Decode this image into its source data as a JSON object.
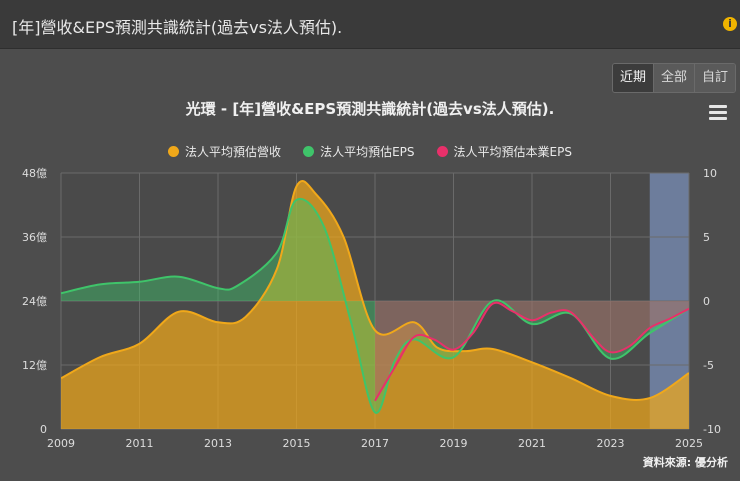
{
  "header": {
    "title": "[年]營收&EPS預測共識統計(過去vs法人預估)."
  },
  "tabs": [
    {
      "label": "近期",
      "active": true
    },
    {
      "label": "全部",
      "active": false
    },
    {
      "label": "自訂",
      "active": false
    }
  ],
  "source": "資料來源: 優分析",
  "colors": {
    "revenue": "#f0a81a",
    "eps": "#3fc46a",
    "epsCore": "#e8306a",
    "future": "#7a8fb8"
  },
  "chart_data": {
    "type": "area",
    "title": "光環 - [年]營收&EPS預測共識統計(過去vs法人預估).",
    "legend": [
      "法人平均預估營收",
      "法人平均預估EPS",
      "法人平均預估本業EPS"
    ],
    "x_ticks": [
      "2009",
      "2011",
      "2013",
      "2015",
      "2017",
      "2019",
      "2021",
      "2023",
      "2025"
    ],
    "xlim": [
      2009,
      2025
    ],
    "y_left": {
      "ticks": [
        "0",
        "12億",
        "24億",
        "36億",
        "48億"
      ],
      "ylim": [
        0,
        48
      ],
      "unit": "億"
    },
    "y_right": {
      "ticks": [
        "-10",
        "-5",
        "0",
        "5",
        "10"
      ],
      "ylim": [
        -10,
        10
      ]
    },
    "forecast_region": [
      2024,
      2025
    ],
    "series": [
      {
        "name": "法人平均預估營收",
        "axis": "left",
        "x": [
          2009,
          2010,
          2011,
          2012,
          2013,
          2013.7,
          2014.5,
          2015,
          2015.5,
          2016.2,
          2017,
          2018,
          2018.6,
          2019.3,
          2020,
          2021,
          2022,
          2023,
          2024,
          2025
        ],
        "values": [
          9.5,
          13.5,
          16,
          22,
          20,
          21,
          30,
          45.5,
          44,
          36,
          18.5,
          20,
          15.2,
          14.6,
          15,
          12.5,
          9.5,
          6.2,
          5.8,
          10.5
        ]
      },
      {
        "name": "法人平均預估EPS",
        "axis": "right",
        "x": [
          2009,
          2010,
          2011,
          2012,
          2013,
          2013.5,
          2014.5,
          2015,
          2015.7,
          2016.4,
          2017,
          2017.5,
          2018,
          2019,
          2020,
          2021,
          2022,
          2023,
          2024,
          2025
        ],
        "values": [
          0.6,
          1.3,
          1.5,
          1.9,
          1.0,
          1.2,
          3.8,
          7.9,
          5.8,
          -1.8,
          -8.7,
          -4.7,
          -3.0,
          -4.4,
          0.0,
          -1.8,
          -1.0,
          -4.5,
          -2.5,
          -0.6
        ]
      },
      {
        "name": "法人平均預估本業EPS",
        "axis": "right",
        "x": [
          2017,
          2017.5,
          2018,
          2018.5,
          2019,
          2019.5,
          2020,
          2020.5,
          2021,
          2021.5,
          2022,
          2022.6,
          2023,
          2023.5,
          2024,
          2024.5,
          2025
        ],
        "values": [
          -7.8,
          -5.2,
          -2.8,
          -3.0,
          -3.8,
          -2.5,
          -0.2,
          -0.8,
          -1.5,
          -0.9,
          -0.9,
          -3.0,
          -4.0,
          -3.5,
          -2.1,
          -1.4,
          -0.6
        ]
      }
    ]
  }
}
